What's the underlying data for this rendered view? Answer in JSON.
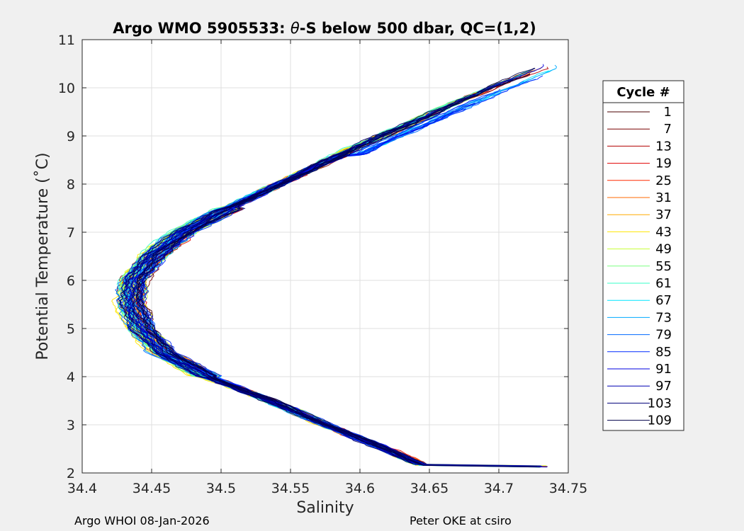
{
  "footer": {
    "left": "Argo WHOI 08-Jan-2026",
    "right": "Peter OKE at csiro"
  },
  "chart_data": {
    "type": "line",
    "title": "Argo WMO 5905533: θ-S below 500 dbar,  QC=(1,2)",
    "title_parts": {
      "before": "Argo WMO 5905533: ",
      "theta": "θ",
      "after": "-S below 500 dbar,  QC=(1,2)"
    },
    "xlabel": "Salinity",
    "ylabel": "Potential Temperature (˚C)",
    "xlim": [
      34.4,
      34.75
    ],
    "ylim": [
      2,
      11
    ],
    "xticks": [
      "34.4",
      "34.45",
      "34.5",
      "34.55",
      "34.6",
      "34.65",
      "34.7",
      "34.75"
    ],
    "yticks": [
      "2",
      "3",
      "4",
      "5",
      "6",
      "7",
      "8",
      "9",
      "10",
      "11"
    ],
    "grid": true,
    "legend": {
      "title": "Cycle #",
      "placement": "outside-right",
      "entries": [
        "1",
        "7",
        "13",
        "19",
        "25",
        "31",
        "37",
        "43",
        "49",
        "55",
        "61",
        "67",
        "73",
        "79",
        "85",
        "91",
        "97",
        "103",
        "109"
      ],
      "colors": [
        "#4a0000",
        "#7a0000",
        "#b30000",
        "#e00000",
        "#ff2a00",
        "#ff6a00",
        "#ffaa00",
        "#ffe600",
        "#c8ff37",
        "#7dff82",
        "#37ffc8",
        "#00e6ff",
        "#00aaff",
        "#006aff",
        "#002aff",
        "#0000e0",
        "#0000b3",
        "#00007a",
        "#00004a"
      ]
    },
    "series_shape": {
      "mean_profile": [
        [
          2.15,
          34.645
        ],
        [
          2.5,
          34.618
        ],
        [
          3.0,
          34.575
        ],
        [
          3.5,
          34.535
        ],
        [
          4.0,
          34.49
        ],
        [
          4.5,
          34.458
        ],
        [
          5.0,
          34.442
        ],
        [
          5.5,
          34.435
        ],
        [
          6.0,
          34.436
        ],
        [
          6.5,
          34.45
        ],
        [
          7.0,
          34.472
        ],
        [
          7.5,
          34.505
        ],
        [
          8.0,
          34.542
        ],
        [
          8.5,
          34.578
        ],
        [
          9.0,
          34.615
        ],
        [
          9.5,
          34.655
        ],
        [
          10.0,
          34.695
        ],
        [
          10.4,
          34.73
        ]
      ]
    }
  }
}
